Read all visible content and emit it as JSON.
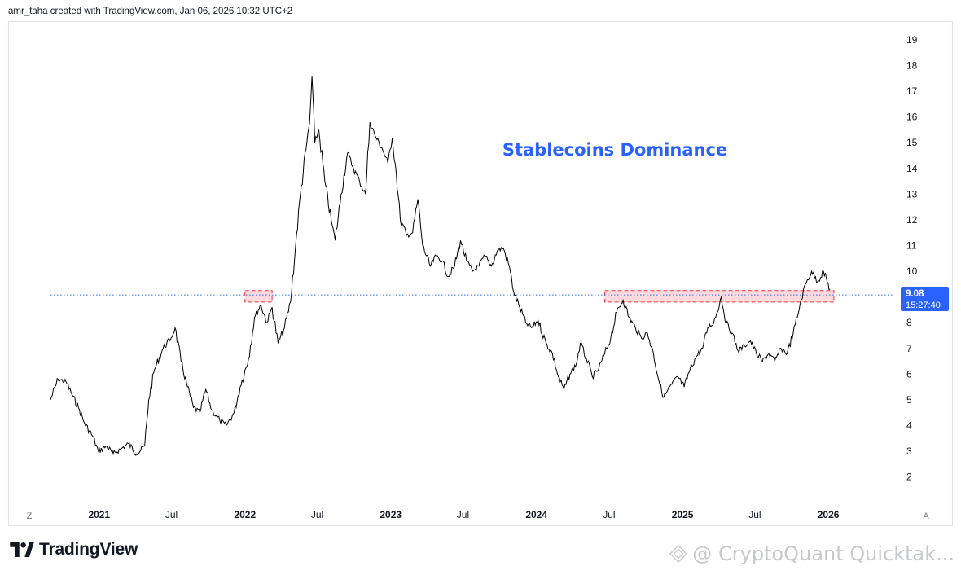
{
  "header": {
    "credit": "amr_taha created with TradingView.com, Jan 06, 2026 10:32 UTC+2"
  },
  "footer": {
    "logo_text": "TradingView",
    "watermark": "@ CryptoQuant Quicktak..."
  },
  "axis_corner": {
    "left": "Z",
    "right": "A"
  },
  "price_label": {
    "value": "9.08",
    "countdown": "15:27:40"
  },
  "colors": {
    "line": "#000000",
    "title": "#2962ff",
    "price_tag": "#2962ff",
    "zone_fill": "#ffcdd2",
    "zone_border": "#f23645",
    "dotted_line": "#2962ff",
    "grid_text": "#131722"
  },
  "chart_data": {
    "type": "line",
    "title": "Stablecoins Dominance",
    "xlabel": "",
    "ylabel": "",
    "xlim": [
      "2020-09-01",
      "2026-06-15"
    ],
    "ylim": [
      1.1,
      19.6
    ],
    "x_ticks": [
      {
        "label": "2021",
        "date": "2021-01-01",
        "bold": true
      },
      {
        "label": "Jul",
        "date": "2021-07-01",
        "bold": false
      },
      {
        "label": "2022",
        "date": "2022-01-01",
        "bold": true
      },
      {
        "label": "Jul",
        "date": "2022-07-01",
        "bold": false
      },
      {
        "label": "2023",
        "date": "2023-01-01",
        "bold": true
      },
      {
        "label": "Jul",
        "date": "2023-07-01",
        "bold": false
      },
      {
        "label": "2024",
        "date": "2024-01-01",
        "bold": true
      },
      {
        "label": "Jul",
        "date": "2024-07-01",
        "bold": false
      },
      {
        "label": "2025",
        "date": "2025-01-01",
        "bold": true
      },
      {
        "label": "Jul",
        "date": "2025-07-01",
        "bold": false
      },
      {
        "label": "2026",
        "date": "2026-01-01",
        "bold": true
      }
    ],
    "y_ticks": [
      "19",
      "18",
      "17",
      "16",
      "15",
      "14",
      "13",
      "12",
      "11",
      "10",
      "8",
      "7",
      "6",
      "5",
      "4",
      "3",
      "2"
    ],
    "horizontal_line": 9.08,
    "zones": [
      {
        "x0": "2022-01-01",
        "x1": "2022-03-10",
        "y0": 8.8,
        "y1": 9.25
      },
      {
        "x0": "2024-06-20",
        "x1": "2026-01-15",
        "y0": 8.8,
        "y1": 9.25
      }
    ],
    "series": [
      {
        "points": [
          [
            "2020-09-01",
            5.0
          ],
          [
            "2020-09-20",
            5.8
          ],
          [
            "2020-10-10",
            5.7
          ],
          [
            "2020-10-25",
            5.2
          ],
          [
            "2020-11-10",
            4.7
          ],
          [
            "2020-11-25",
            4.1
          ],
          [
            "2020-12-15",
            3.6
          ],
          [
            "2020-12-30",
            3.0
          ],
          [
            "2021-01-20",
            3.2
          ],
          [
            "2021-02-05",
            2.9
          ],
          [
            "2021-02-25",
            3.1
          ],
          [
            "2021-03-15",
            3.3
          ],
          [
            "2021-04-05",
            2.9
          ],
          [
            "2021-04-25",
            3.2
          ],
          [
            "2021-05-05",
            5.0
          ],
          [
            "2021-05-20",
            6.2
          ],
          [
            "2021-06-10",
            7.0
          ],
          [
            "2021-06-30",
            7.4
          ],
          [
            "2021-07-10",
            7.8
          ],
          [
            "2021-07-25",
            6.5
          ],
          [
            "2021-08-10",
            5.5
          ],
          [
            "2021-08-25",
            4.7
          ],
          [
            "2021-09-10",
            4.5
          ],
          [
            "2021-09-25",
            5.4
          ],
          [
            "2021-10-10",
            4.6
          ],
          [
            "2021-10-30",
            4.2
          ],
          [
            "2021-11-15",
            4.0
          ],
          [
            "2021-12-05",
            4.5
          ],
          [
            "2021-12-20",
            5.5
          ],
          [
            "2022-01-10",
            6.6
          ],
          [
            "2022-01-25",
            8.2
          ],
          [
            "2022-02-10",
            8.7
          ],
          [
            "2022-02-25",
            8.0
          ],
          [
            "2022-03-10",
            8.6
          ],
          [
            "2022-03-25",
            7.2
          ],
          [
            "2022-04-10",
            7.8
          ],
          [
            "2022-04-25",
            8.8
          ],
          [
            "2022-05-08",
            11.0
          ],
          [
            "2022-05-20",
            13.0
          ],
          [
            "2022-06-05",
            15.0
          ],
          [
            "2022-06-12",
            15.8
          ],
          [
            "2022-06-18",
            17.6
          ],
          [
            "2022-06-25",
            15.0
          ],
          [
            "2022-07-05",
            15.5
          ],
          [
            "2022-07-20",
            13.5
          ],
          [
            "2022-08-05",
            12.0
          ],
          [
            "2022-08-15",
            11.2
          ],
          [
            "2022-08-30",
            13.0
          ],
          [
            "2022-09-15",
            14.6
          ],
          [
            "2022-09-30",
            14.0
          ],
          [
            "2022-10-15",
            13.5
          ],
          [
            "2022-10-30",
            13.0
          ],
          [
            "2022-11-10",
            15.8
          ],
          [
            "2022-11-25",
            15.2
          ],
          [
            "2022-12-10",
            14.8
          ],
          [
            "2022-12-25",
            14.2
          ],
          [
            "2023-01-05",
            15.2
          ],
          [
            "2023-01-15",
            13.8
          ],
          [
            "2023-01-25",
            12.0
          ],
          [
            "2023-02-10",
            11.4
          ],
          [
            "2023-02-25",
            11.5
          ],
          [
            "2023-03-10",
            12.8
          ],
          [
            "2023-03-22",
            11.0
          ],
          [
            "2023-04-10",
            10.2
          ],
          [
            "2023-04-25",
            10.6
          ],
          [
            "2023-05-10",
            10.4
          ],
          [
            "2023-05-25",
            9.8
          ],
          [
            "2023-06-10",
            10.2
          ],
          [
            "2023-06-25",
            11.2
          ],
          [
            "2023-07-10",
            10.4
          ],
          [
            "2023-07-25",
            10.0
          ],
          [
            "2023-08-10",
            10.2
          ],
          [
            "2023-08-25",
            10.6
          ],
          [
            "2023-09-10",
            10.2
          ],
          [
            "2023-09-25",
            10.8
          ],
          [
            "2023-10-10",
            10.9
          ],
          [
            "2023-10-25",
            10.2
          ],
          [
            "2023-11-05",
            9.2
          ],
          [
            "2023-11-20",
            8.6
          ],
          [
            "2023-12-05",
            8.0
          ],
          [
            "2023-12-20",
            7.8
          ],
          [
            "2024-01-05",
            8.1
          ],
          [
            "2024-01-25",
            7.2
          ],
          [
            "2024-02-10",
            6.8
          ],
          [
            "2024-02-25",
            5.9
          ],
          [
            "2024-03-10",
            5.4
          ],
          [
            "2024-03-25",
            6.0
          ],
          [
            "2024-04-10",
            6.4
          ],
          [
            "2024-04-20",
            7.2
          ],
          [
            "2024-05-05",
            6.6
          ],
          [
            "2024-05-20",
            5.9
          ],
          [
            "2024-06-05",
            6.2
          ],
          [
            "2024-06-20",
            6.8
          ],
          [
            "2024-07-05",
            7.4
          ],
          [
            "2024-07-20",
            8.4
          ],
          [
            "2024-08-05",
            8.9
          ],
          [
            "2024-08-20",
            8.2
          ],
          [
            "2024-09-05",
            7.8
          ],
          [
            "2024-09-20",
            7.4
          ],
          [
            "2024-10-05",
            7.6
          ],
          [
            "2024-10-20",
            6.8
          ],
          [
            "2024-11-05",
            5.6
          ],
          [
            "2024-11-15",
            5.1
          ],
          [
            "2024-12-05",
            5.6
          ],
          [
            "2024-12-20",
            5.9
          ],
          [
            "2025-01-05",
            5.5
          ],
          [
            "2025-01-20",
            6.2
          ],
          [
            "2025-02-05",
            6.7
          ],
          [
            "2025-02-20",
            7.0
          ],
          [
            "2025-03-05",
            7.8
          ],
          [
            "2025-03-20",
            8.0
          ],
          [
            "2025-04-08",
            9.0
          ],
          [
            "2025-04-20",
            8.0
          ],
          [
            "2025-05-05",
            7.6
          ],
          [
            "2025-05-20",
            6.9
          ],
          [
            "2025-06-05",
            7.1
          ],
          [
            "2025-06-20",
            7.3
          ],
          [
            "2025-07-05",
            6.8
          ],
          [
            "2025-07-20",
            6.5
          ],
          [
            "2025-08-05",
            6.8
          ],
          [
            "2025-08-20",
            6.5
          ],
          [
            "2025-09-05",
            7.0
          ],
          [
            "2025-09-20",
            6.8
          ],
          [
            "2025-10-05",
            7.6
          ],
          [
            "2025-10-15",
            8.2
          ],
          [
            "2025-10-25",
            8.9
          ],
          [
            "2025-11-05",
            9.5
          ],
          [
            "2025-11-20",
            10.0
          ],
          [
            "2025-12-05",
            9.6
          ],
          [
            "2025-12-20",
            10.0
          ],
          [
            "2026-01-05",
            9.3
          ]
        ]
      }
    ]
  }
}
